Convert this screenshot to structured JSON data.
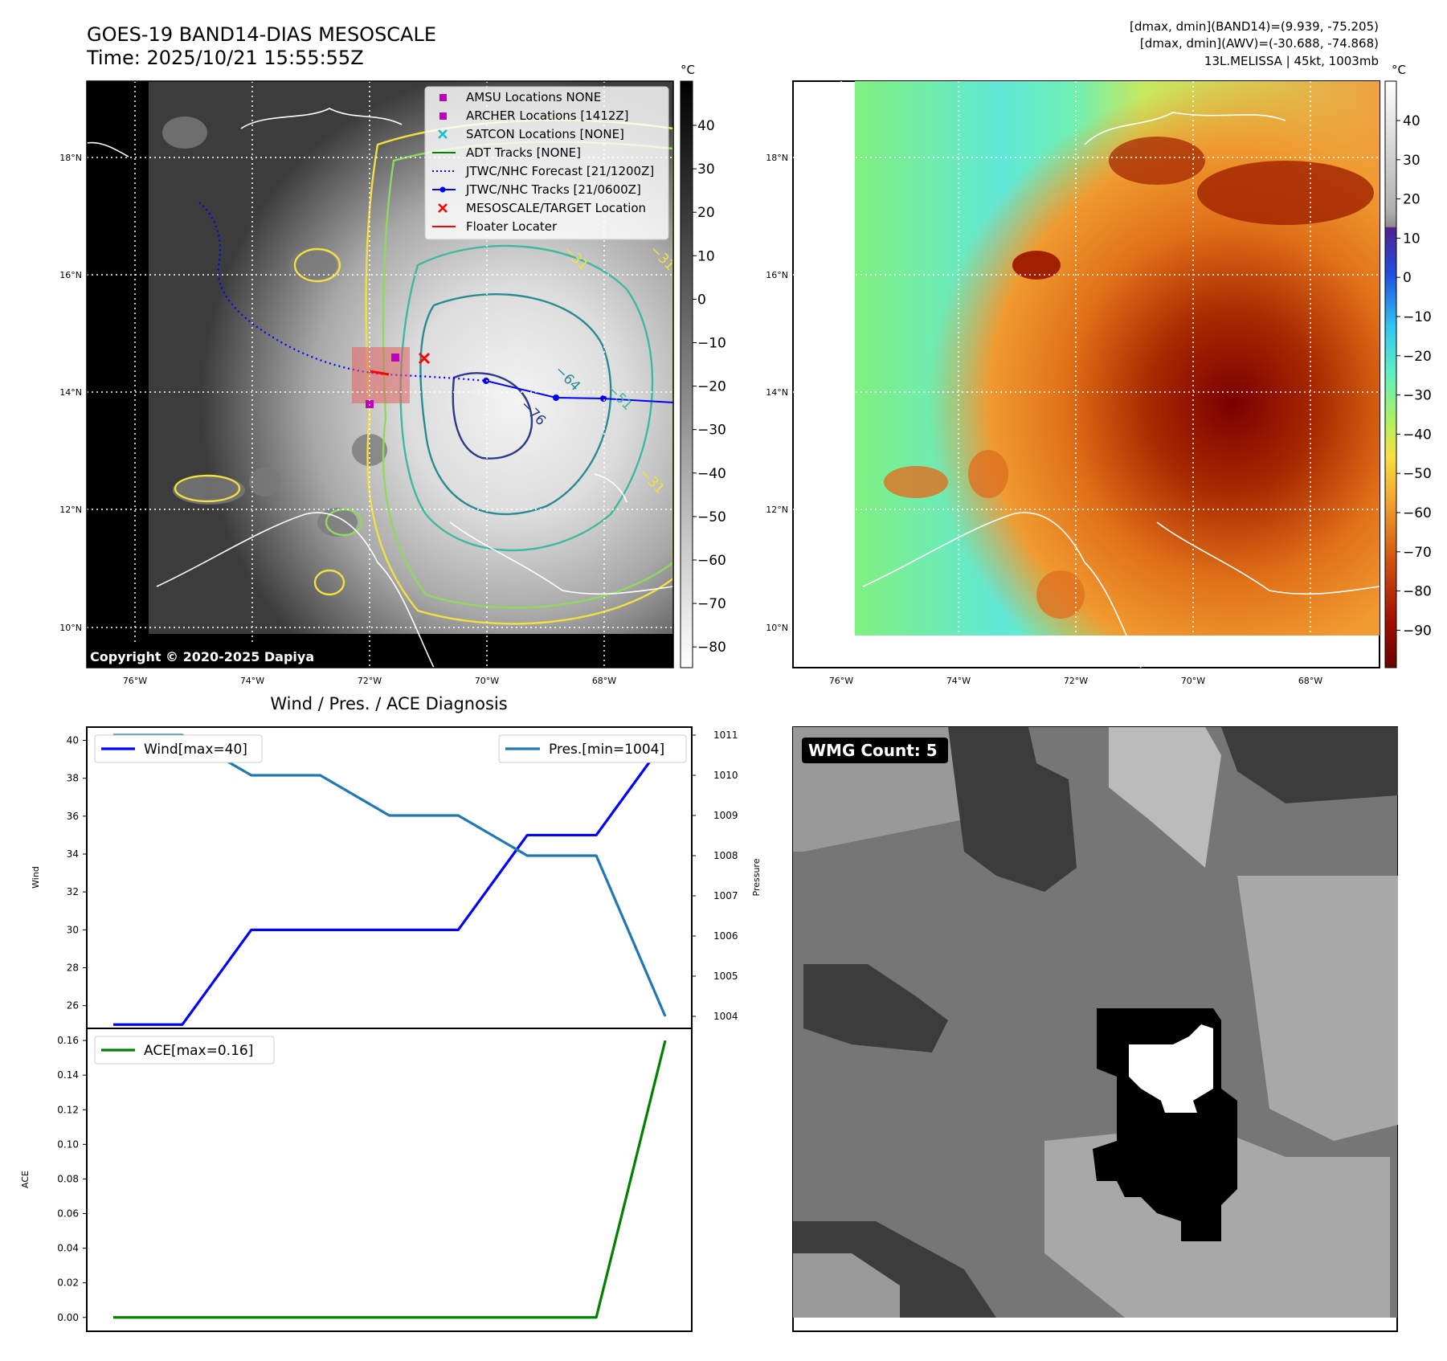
{
  "header": {
    "title_line1": "GOES-19 BAND14-DIAS MESOSCALE",
    "title_line2": "Time: 2025/10/21 15:55:55Z",
    "stats_line1": "[dmax, dmin](BAND14)=(9.939, -75.205)",
    "stats_line2": "[dmax, dmin](AWV)=(-30.688, -74.868)",
    "stats_line3": "13L.MELISSA | 45kt, 1003mb"
  },
  "ir_map": {
    "copyright": "Copyright © 2020-2025 Dapiya",
    "lat_labels": [
      "18°N",
      "16°N",
      "14°N",
      "12°N",
      "10°N"
    ],
    "lon_labels": [
      "76°W",
      "74°W",
      "72°W",
      "70°W",
      "68°W"
    ],
    "colorbar_unit": "°C",
    "colorbar_ticks": [
      "40",
      "30",
      "20",
      "10",
      "0",
      "−10",
      "−20",
      "−30",
      "−40",
      "−50",
      "−60",
      "−70",
      "−80"
    ],
    "contour_labels": [
      "−31",
      "−31",
      "−64",
      "−76",
      "−31",
      "−51"
    ],
    "legend": [
      {
        "label": "AMSU Locations NONE",
        "color": "#c000c0",
        "marker": "square"
      },
      {
        "label": "ARCHER Locations [1412Z]",
        "color": "#c000c0",
        "marker": "square"
      },
      {
        "label": "SATCON Locations [NONE]",
        "color": "#17becf",
        "marker": "x"
      },
      {
        "label": "ADT Tracks [NONE]",
        "color": "#008000",
        "marker": "line"
      },
      {
        "label": "JTWC/NHC Forecast [21/1200Z]",
        "color": "#0000ff",
        "marker": "dotted"
      },
      {
        "label": "JTWC/NHC Tracks [21/0600Z]",
        "color": "#0000ff",
        "marker": "line-dot"
      },
      {
        "label": "MESOSCALE/TARGET Location",
        "color": "#ff0000",
        "marker": "x"
      },
      {
        "label": "Floater Locater",
        "color": "#ff0000",
        "marker": "line"
      }
    ]
  },
  "awv_map": {
    "lat_labels": [
      "18°N",
      "16°N",
      "14°N",
      "12°N",
      "10°N"
    ],
    "lon_labels": [
      "76°W",
      "74°W",
      "72°W",
      "70°W",
      "68°W"
    ],
    "colorbar_unit": "°C",
    "colorbar_ticks": [
      "40",
      "30",
      "20",
      "10",
      "0",
      "−10",
      "−20",
      "−30",
      "−40",
      "−50",
      "−60",
      "−70",
      "−80",
      "−90"
    ]
  },
  "wmg": {
    "badge": "WMG Count: 5"
  },
  "chart_data": [
    {
      "type": "line",
      "title": "Wind / Pres. / ACE Diagnosis",
      "ylabel": "Wind",
      "ylabel_right": "Pressure",
      "ylim": [
        24.8,
        40.7
      ],
      "ylim_right": [
        1003.7,
        1011.2
      ],
      "yticks": [
        "40",
        "38",
        "36",
        "34",
        "32",
        "30",
        "28",
        "26"
      ],
      "yticks_right": [
        "1011",
        "1010",
        "1009",
        "1008",
        "1007",
        "1006",
        "1005",
        "1004"
      ],
      "x": [
        0,
        1,
        2,
        3,
        4,
        5,
        6,
        7,
        8
      ],
      "series": [
        {
          "name": "Wind[max=40]",
          "axis": "left",
          "color": "#0000ff",
          "values": [
            25,
            25,
            30,
            30,
            30,
            30,
            35,
            35,
            40
          ]
        },
        {
          "name": "Pres.[min=1004]",
          "axis": "right",
          "color": "#1f77b4",
          "values": [
            1011,
            1011,
            1010,
            1010,
            1009,
            1009,
            1008,
            1008,
            1004
          ]
        }
      ]
    },
    {
      "type": "line",
      "ylabel": "ACE",
      "ylim": [
        -0.008,
        0.167
      ],
      "yticks": [
        "0.16",
        "0.14",
        "0.12",
        "0.10",
        "0.08",
        "0.06",
        "0.04",
        "0.02",
        "0.00"
      ],
      "x": [
        0,
        1,
        2,
        3,
        4,
        5,
        6,
        7,
        8
      ],
      "series": [
        {
          "name": "ACE[max=0.16]",
          "color": "#008000",
          "values": [
            0,
            0,
            0,
            0,
            0,
            0,
            0,
            0,
            0.16
          ]
        }
      ]
    }
  ]
}
